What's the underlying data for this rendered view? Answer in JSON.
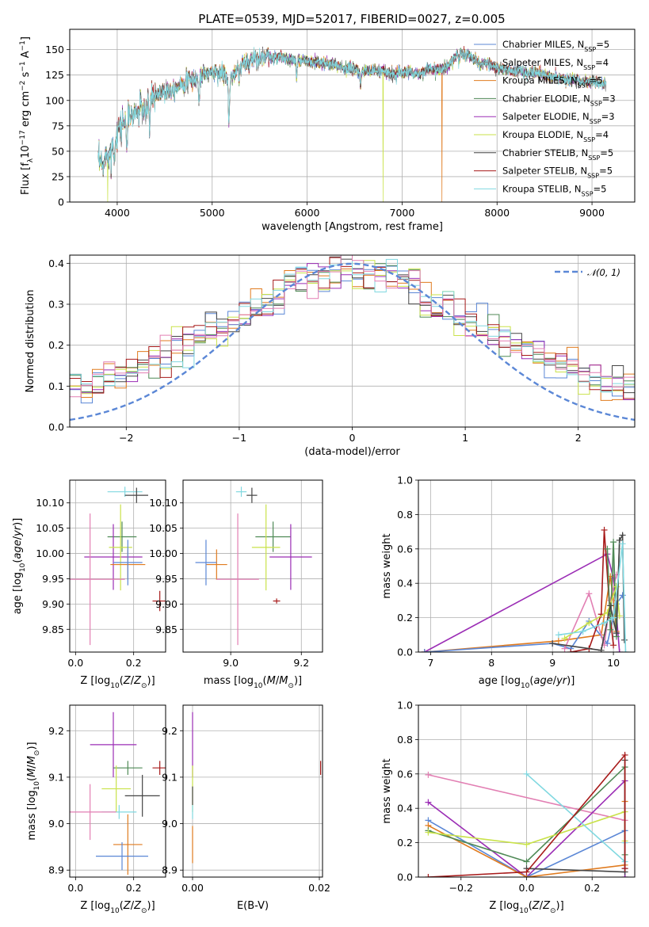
{
  "title": "PLATE=0539, MJD=52017, FIBERID=0027, z=0.005",
  "colors": {
    "Chabrier MILES": "#5b87d6",
    "Salpeter MILES": "#8a8a8a",
    "Kroupa MILES": "#e07b1f",
    "Chabrier ELODIE": "#4f8a56",
    "Salpeter ELODIE": "#9b2db5",
    "Kroupa ELODIE": "#c9e24a",
    "Chabrier STELIB": "#454545",
    "Salpeter STELIB": "#a71a1a",
    "Kroupa STELIB": "#80d8e0",
    "pink": "#e27fb3",
    "dashed": "#5b87d6"
  },
  "chart_data": [
    {
      "id": "spectrum",
      "type": "line",
      "xlabel": "wavelength [Angstrom, rest frame]",
      "xlim": [
        3500,
        9450
      ],
      "ylim": [
        0,
        170
      ],
      "xticks": [
        4000,
        5000,
        6000,
        7000,
        8000,
        9000
      ],
      "yticks": [
        0,
        25,
        50,
        75,
        100,
        125,
        150
      ],
      "xrange_data": [
        3800,
        9150
      ],
      "legend_placement": "top-right",
      "legend": [
        {
          "name": "Chabrier MILES",
          "nssp": "5"
        },
        {
          "name": "Salpeter MILES",
          "nssp": "4"
        },
        {
          "name": "Kroupa MILES",
          "nssp": "5"
        },
        {
          "name": "Chabrier ELODIE",
          "nssp": "3"
        },
        {
          "name": "Salpeter ELODIE",
          "nssp": "3"
        },
        {
          "name": "Kroupa ELODIE",
          "nssp": "4"
        },
        {
          "name": "Chabrier STELIB",
          "nssp": "5"
        },
        {
          "name": "Salpeter STELIB",
          "nssp": "5"
        },
        {
          "name": "Kroupa STELIB",
          "nssp": "5"
        }
      ],
      "continuum": [
        [
          3800,
          40
        ],
        [
          3850,
          35
        ],
        [
          3900,
          50
        ],
        [
          3950,
          60
        ],
        [
          4000,
          70
        ],
        [
          4100,
          82
        ],
        [
          4200,
          88
        ],
        [
          4300,
          95
        ],
        [
          4400,
          105
        ],
        [
          4500,
          110
        ],
        [
          4600,
          112
        ],
        [
          4700,
          118
        ],
        [
          4800,
          120
        ],
        [
          4900,
          125
        ],
        [
          5000,
          128
        ],
        [
          5100,
          127
        ],
        [
          5200,
          120
        ],
        [
          5300,
          132
        ],
        [
          5400,
          140
        ],
        [
          5500,
          143
        ],
        [
          5600,
          142
        ],
        [
          5700,
          143
        ],
        [
          5800,
          140
        ],
        [
          5900,
          140
        ],
        [
          6000,
          138
        ],
        [
          6100,
          137
        ],
        [
          6200,
          136
        ],
        [
          6300,
          134
        ],
        [
          6400,
          132
        ],
        [
          6500,
          130
        ],
        [
          6600,
          128
        ],
        [
          6700,
          130
        ],
        [
          6800,
          128
        ],
        [
          6900,
          126
        ],
        [
          7000,
          128
        ],
        [
          7100,
          127
        ],
        [
          7200,
          127
        ],
        [
          7300,
          132
        ],
        [
          7400,
          130
        ],
        [
          7500,
          136
        ],
        [
          7600,
          147
        ],
        [
          7700,
          145
        ],
        [
          7800,
          137
        ],
        [
          7900,
          136
        ],
        [
          8000,
          132
        ],
        [
          8100,
          130
        ],
        [
          8200,
          129
        ],
        [
          8300,
          128
        ],
        [
          8400,
          127
        ],
        [
          8500,
          125
        ],
        [
          8600,
          123
        ],
        [
          8700,
          121
        ],
        [
          8800,
          120
        ],
        [
          8900,
          119
        ],
        [
          9000,
          118
        ],
        [
          9150,
          116
        ]
      ],
      "dips": [
        [
          3900,
          0,
          "Kroupa ELODIE"
        ],
        [
          6800,
          0,
          "Kroupa ELODIE"
        ],
        [
          7420,
          0,
          "Kroupa MILES"
        ]
      ],
      "absorption": [
        [
          3934,
          20
        ],
        [
          3968,
          25
        ],
        [
          4102,
          30
        ],
        [
          4300,
          20
        ],
        [
          4340,
          25
        ],
        [
          4861,
          25
        ],
        [
          5175,
          45
        ],
        [
          5890,
          20
        ],
        [
          6563,
          15
        ],
        [
          7600,
          10
        ]
      ]
    },
    {
      "id": "residuals",
      "type": "histogram",
      "xlabel": "(data-model)/error",
      "ylabel": "Normed distribution",
      "xlim": [
        -2.5,
        2.5
      ],
      "ylim": [
        0,
        0.42
      ],
      "xticks": [
        -2,
        -1,
        0,
        1,
        2
      ],
      "yticks": [
        0.0,
        0.1,
        0.2,
        0.3,
        0.4
      ],
      "reference_label": "N(0,1)",
      "legend_placement": "top-right",
      "bin_width": 0.1
    },
    {
      "id": "age-vs-Z",
      "type": "errorbar",
      "xlabel": "Z [log10(Z/Z⊙)]",
      "ylabel": "age [log10(age/yr)]",
      "xlim": [
        -0.02,
        0.31
      ],
      "ylim": [
        9.805,
        10.145
      ],
      "xticks": [
        0.0,
        0.2
      ],
      "yticks": [
        9.85,
        9.9,
        9.95,
        10.0,
        10.05,
        10.1
      ],
      "points": [
        {
          "color": "Kroupa STELIB",
          "x": 0.17,
          "xerr": 0.06,
          "y": 10.122,
          "yerr": 0.01
        },
        {
          "color": "Chabrier STELIB",
          "x": 0.21,
          "xerr": 0.04,
          "y": 10.115,
          "yerr": 0.015
        },
        {
          "color": "Chabrier ELODIE",
          "x": 0.16,
          "xerr": 0.05,
          "y": 10.033,
          "yerr": 0.03
        },
        {
          "color": "Salpeter ELODIE",
          "x": 0.13,
          "xerr": 0.1,
          "y": 9.993,
          "yerr": 0.065
        },
        {
          "color": "Kroupa ELODIE",
          "x": 0.155,
          "xerr": 0.04,
          "y": 10.012,
          "yerr": 0.085
        },
        {
          "color": "Kroupa MILES",
          "x": 0.18,
          "xerr": 0.06,
          "y": 9.978,
          "yerr": 0.03
        },
        {
          "color": "Chabrier MILES",
          "x": 0.18,
          "xerr": 0.05,
          "y": 9.982,
          "yerr": 0.045
        },
        {
          "color": "pink",
          "x": 0.05,
          "xerr": 0.12,
          "y": 9.949,
          "yerr": 0.13
        },
        {
          "color": "Salpeter STELIB",
          "x": 0.29,
          "xerr": 0.025,
          "y": 9.906,
          "yerr": 0.02
        }
      ]
    },
    {
      "id": "age-vs-mass",
      "type": "errorbar",
      "xlabel": "mass [log10(M/M⊙)]",
      "xlim": [
        8.865,
        9.26
      ],
      "ylim": [
        9.805,
        10.145
      ],
      "xticks": [
        9.0,
        9.2
      ],
      "yticks": [
        9.85,
        9.9,
        9.95,
        10.0,
        10.05,
        10.1
      ],
      "points": [
        {
          "color": "Kroupa STELIB",
          "x": 9.03,
          "xerr": 0.015,
          "y": 10.122,
          "yerr": 0.01
        },
        {
          "color": "Chabrier STELIB",
          "x": 9.06,
          "xerr": 0.015,
          "y": 10.115,
          "yerr": 0.015
        },
        {
          "color": "Chabrier ELODIE",
          "x": 9.12,
          "xerr": 0.05,
          "y": 10.033,
          "yerr": 0.03
        },
        {
          "color": "Salpeter ELODIE",
          "x": 9.17,
          "xerr": 0.06,
          "y": 9.993,
          "yerr": 0.065
        },
        {
          "color": "Kroupa ELODIE",
          "x": 9.1,
          "xerr": 0.04,
          "y": 10.012,
          "yerr": 0.085
        },
        {
          "color": "Kroupa MILES",
          "x": 8.96,
          "xerr": 0.03,
          "y": 9.978,
          "yerr": 0.03
        },
        {
          "color": "Chabrier MILES",
          "x": 8.93,
          "xerr": 0.03,
          "y": 9.982,
          "yerr": 0.045
        },
        {
          "color": "pink",
          "x": 9.02,
          "xerr": 0.06,
          "y": 9.949,
          "yerr": 0.13
        },
        {
          "color": "Salpeter STELIB",
          "x": 9.13,
          "xerr": 0.01,
          "y": 9.906,
          "yerr": 0.005
        }
      ]
    },
    {
      "id": "weight-vs-age",
      "type": "line",
      "xlabel": "age [log10(age/yr)]",
      "ylabel": "mass weight",
      "xlim": [
        6.8,
        10.35
      ],
      "ylim": [
        0,
        1.0
      ],
      "xticks": [
        7,
        8,
        9,
        10
      ],
      "yticks": [
        0.0,
        0.2,
        0.4,
        0.6,
        0.8,
        1.0
      ],
      "series": [
        {
          "color": "Salpeter ELODIE",
          "x": [
            6.9,
            9.9,
            10.0,
            10.1
          ],
          "y": [
            0.0,
            0.57,
            0.43,
            0.0
          ]
        },
        {
          "color": "Kroupa MILES",
          "x": [
            6.9,
            9.1,
            9.8,
            9.95,
            10.0,
            10.05
          ],
          "y": [
            0.0,
            0.065,
            0.1,
            0.44,
            0.3,
            0.12
          ]
        },
        {
          "color": "Chabrier MILES",
          "x": [
            6.9,
            9.0,
            9.3,
            9.6,
            9.9,
            10.05,
            10.15
          ],
          "y": [
            0.0,
            0.05,
            0.02,
            0.18,
            0.05,
            0.28,
            0.33
          ]
        },
        {
          "color": "pink",
          "x": [
            9.2,
            9.6,
            9.85,
            9.95,
            10.05
          ],
          "y": [
            0.02,
            0.34,
            0.04,
            0.3,
            0.45
          ]
        },
        {
          "color": "Salpeter STELIB",
          "x": [
            9.3,
            9.6,
            9.8,
            9.85,
            9.95,
            10.0
          ],
          "y": [
            0.0,
            0.02,
            0.22,
            0.71,
            0.2,
            0.04
          ]
        },
        {
          "color": "Chabrier ELODIE",
          "x": [
            9.9,
            9.95,
            10.0,
            10.05,
            10.1
          ],
          "y": [
            0.6,
            0.13,
            0.64,
            0.09,
            0.65
          ]
        },
        {
          "color": "Kroupa ELODIE",
          "x": [
            9.2,
            9.6,
            9.9,
            10.05,
            10.1
          ],
          "y": [
            0.08,
            0.17,
            0.23,
            0.38,
            0.21
          ]
        },
        {
          "color": "Chabrier STELIB",
          "x": [
            9.0,
            9.8,
            9.95,
            10.05,
            10.1,
            10.15,
            10.18
          ],
          "y": [
            0.05,
            0.01,
            0.27,
            0.11,
            0.65,
            0.68,
            0.07
          ]
        },
        {
          "color": "Kroupa STELIB",
          "x": [
            9.1,
            9.5,
            9.85,
            10.0,
            10.15,
            10.2
          ],
          "y": [
            0.1,
            0.12,
            0.17,
            0.2,
            0.63,
            0.0
          ]
        }
      ]
    },
    {
      "id": "mass-vs-Z",
      "type": "errorbar",
      "xlabel": "Z [log10(Z/Z⊙)]",
      "ylabel": "mass [log10(M/M⊙)]",
      "xlim": [
        -0.02,
        0.31
      ],
      "ylim": [
        8.885,
        9.255
      ],
      "xticks": [
        0.0,
        0.2
      ],
      "yticks": [
        8.9,
        9.0,
        9.1,
        9.2
      ],
      "points": [
        {
          "color": "Salpeter ELODIE",
          "x": 0.13,
          "xerr": 0.08,
          "y": 9.17,
          "yerr": 0.07
        },
        {
          "color": "Salpeter STELIB",
          "x": 0.29,
          "xerr": 0.025,
          "y": 9.12,
          "yerr": 0.015
        },
        {
          "color": "Chabrier ELODIE",
          "x": 0.18,
          "xerr": 0.05,
          "y": 9.12,
          "yerr": 0.015
        },
        {
          "color": "Kroupa ELODIE",
          "x": 0.14,
          "xerr": 0.05,
          "y": 9.075,
          "yerr": 0.05
        },
        {
          "color": "Chabrier STELIB",
          "x": 0.23,
          "xerr": 0.06,
          "y": 9.06,
          "yerr": 0.045
        },
        {
          "color": "Kroupa STELIB",
          "x": 0.15,
          "xerr": 0.06,
          "y": 9.025,
          "yerr": 0.015
        },
        {
          "color": "pink",
          "x": 0.05,
          "xerr": 0.09,
          "y": 9.025,
          "yerr": 0.06
        },
        {
          "color": "Kroupa MILES",
          "x": 0.18,
          "xerr": 0.05,
          "y": 8.955,
          "yerr": 0.065
        },
        {
          "color": "Chabrier MILES",
          "x": 0.16,
          "xerr": 0.09,
          "y": 8.93,
          "yerr": 0.03
        }
      ]
    },
    {
      "id": "mass-vs-EBV",
      "type": "errorbar",
      "xlabel": "E(B-V)",
      "xlim": [
        -0.0015,
        0.0205
      ],
      "ylim": [
        8.885,
        9.255
      ],
      "xticks": [
        0.0,
        0.02
      ],
      "yticks": [
        8.9,
        9.0,
        9.1,
        9.2
      ],
      "points": [
        {
          "color": "Salpeter ELODIE",
          "x": 0.0,
          "xerr": 0,
          "y": 9.17,
          "yerr": 0.07
        },
        {
          "color": "Kroupa ELODIE",
          "x": 0.0,
          "xerr": 0,
          "y": 9.075,
          "yerr": 0.05
        },
        {
          "color": "Chabrier STELIB",
          "x": 0.0,
          "xerr": 0,
          "y": 9.06,
          "yerr": 0.02
        },
        {
          "color": "Kroupa STELIB",
          "x": 0.0,
          "xerr": 0,
          "y": 9.025,
          "yerr": 0.015
        },
        {
          "color": "Kroupa MILES",
          "x": 0.0,
          "xerr": 0,
          "y": 8.955,
          "yerr": 0.04
        },
        {
          "color": "Salpeter STELIB",
          "x": 0.0202,
          "xerr": 0,
          "y": 9.12,
          "yerr": 0.015
        }
      ]
    },
    {
      "id": "weight-vs-Z",
      "type": "line",
      "xlabel": "Z [log10(Z/Z⊙)]",
      "ylabel": "mass weight",
      "xlim": [
        -0.33,
        0.33
      ],
      "ylim": [
        0,
        1.0
      ],
      "xticks": [
        -0.2,
        0.0,
        0.2
      ],
      "yticks": [
        0.0,
        0.2,
        0.4,
        0.6,
        0.8,
        1.0
      ],
      "series": [
        {
          "color": "pink",
          "x": [
            -0.3,
            0.3
          ],
          "y": [
            0.595,
            0.33
          ]
        },
        {
          "color": "Salpeter ELODIE",
          "x": [
            -0.3,
            0.0,
            0.3,
            0.3
          ],
          "y": [
            0.435,
            0.0,
            0.56,
            0.0
          ]
        },
        {
          "color": "Chabrier MILES",
          "x": [
            -0.3,
            0.0,
            0.3,
            0.3
          ],
          "y": [
            0.33,
            0.0,
            0.27,
            0.05
          ]
        },
        {
          "color": "Kroupa MILES",
          "x": [
            -0.3,
            0.0,
            0.3,
            0.3
          ],
          "y": [
            0.3,
            0.0,
            0.07,
            0.44
          ]
        },
        {
          "color": "Chabrier ELODIE",
          "x": [
            -0.3,
            0.0,
            0.3,
            0.3
          ],
          "y": [
            0.27,
            0.09,
            0.64,
            0.13
          ]
        },
        {
          "color": "Kroupa ELODIE",
          "x": [
            -0.3,
            0.0,
            0.3,
            0.3
          ],
          "y": [
            0.26,
            0.19,
            0.38,
            0.21
          ]
        },
        {
          "color": "Kroupa STELIB",
          "x": [
            0.0,
            0.3,
            0.3
          ],
          "y": [
            0.6,
            0.09,
            0.2
          ]
        },
        {
          "color": "Chabrier STELIB",
          "x": [
            0.0,
            0.3,
            0.3
          ],
          "y": [
            0.05,
            0.03,
            0.68
          ]
        },
        {
          "color": "Salpeter STELIB",
          "x": [
            -0.3,
            0.0,
            0.3,
            0.3
          ],
          "y": [
            0.0,
            0.03,
            0.71,
            0.05
          ]
        }
      ]
    }
  ]
}
